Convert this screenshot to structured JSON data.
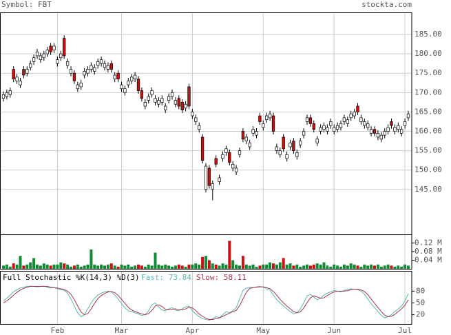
{
  "header": {
    "symbol": "Symbol: FBT",
    "site": "stockta.com"
  },
  "chart_data": [
    {
      "type": "candlestick",
      "up_color": "#ffffff",
      "down_color": "#cc1111",
      "edge_color": "#000000",
      "grid": true,
      "ylim": [
        133.4,
        190.7
      ],
      "yticks": [
        {
          "value": 145,
          "label": "145.00"
        },
        {
          "value": 150,
          "label": "150.00"
        },
        {
          "value": 155,
          "label": "155.00"
        },
        {
          "value": 160,
          "label": "160.00"
        },
        {
          "value": 165,
          "label": "165.00"
        },
        {
          "value": 170,
          "label": "170.00"
        },
        {
          "value": 175,
          "label": "175.00"
        },
        {
          "value": 180,
          "label": "180.00"
        },
        {
          "value": 185,
          "label": "185.00"
        }
      ],
      "categories": [
        null,
        null,
        null,
        null,
        null,
        null,
        null,
        null,
        null,
        null,
        null,
        null,
        null,
        null,
        null,
        null,
        "Feb",
        null,
        null,
        null,
        null,
        null,
        null,
        null,
        null,
        null,
        null,
        null,
        null,
        null,
        null,
        null,
        null,
        null,
        null,
        "Mar",
        null,
        null,
        null,
        null,
        null,
        null,
        null,
        null,
        null,
        null,
        null,
        null,
        null,
        null,
        null,
        null,
        null,
        null,
        null,
        null,
        "Apr",
        null,
        null,
        null,
        null,
        null,
        null,
        null,
        null,
        null,
        null,
        null,
        null,
        null,
        null,
        null,
        null,
        null,
        null,
        null,
        null,
        "May",
        null,
        null,
        null,
        null,
        null,
        null,
        null,
        null,
        null,
        null,
        null,
        null,
        null,
        null,
        null,
        null,
        null,
        null,
        null,
        null,
        "Jun",
        null,
        null,
        null,
        null,
        null,
        null,
        null,
        null,
        null,
        null,
        null,
        null,
        null,
        null,
        null,
        null,
        null,
        null,
        null,
        null,
        "Jul",
        null
      ],
      "open": [
        168.5,
        169,
        169.5,
        176,
        173,
        172,
        176,
        175,
        176.5,
        178,
        179.5,
        178.5,
        179,
        180,
        182,
        181,
        177.5,
        179,
        184,
        177,
        175,
        175,
        171,
        171.5,
        174.5,
        175,
        176,
        175.5,
        177,
        177.5,
        176.5,
        176,
        177.5,
        173.5,
        175,
        171,
        170,
        172,
        173,
        173.5,
        173.5,
        170.5,
        166.5,
        168,
        169.5,
        167.5,
        167,
        167.5,
        165.5,
        168,
        169,
        167,
        168.5,
        167.5,
        166,
        171.5,
        164,
        162.5,
        160.5,
        158.5,
        145,
        150.5,
        145,
        153,
        147,
        153,
        154.5,
        154.5,
        150.5,
        149.5,
        154,
        160,
        157.5,
        156,
        159.5,
        159,
        164,
        161,
        163,
        163.5,
        164,
        155,
        154,
        158.5,
        153,
        156,
        157.5,
        153.5,
        156.5,
        159,
        162.5,
        163.5,
        162,
        157,
        160,
        160.5,
        160,
        161.5,
        160,
        160.5,
        161,
        162.5,
        162,
        163.5,
        164,
        166.5,
        162.5,
        161.5,
        161,
        159.5,
        160.5,
        158.5,
        158,
        159,
        160,
        162.5,
        160,
        160.5,
        159.5,
        161.5,
        163.5
      ],
      "high": [
        170.3,
        170.8,
        171.3,
        176.8,
        174.8,
        173.8,
        176.8,
        176.8,
        178.3,
        179.8,
        181.3,
        180.3,
        180.8,
        181.8,
        182.8,
        182.8,
        179.3,
        180.8,
        184.8,
        178.8,
        176.8,
        175.8,
        172.8,
        173.3,
        176.3,
        176.8,
        177.8,
        177.3,
        178.8,
        179.3,
        178.3,
        177.8,
        178.3,
        175.3,
        175.8,
        172.8,
        171.8,
        173.8,
        174.8,
        175.3,
        174.3,
        171.3,
        168.3,
        169.8,
        171.3,
        169.3,
        168.8,
        169.3,
        167.3,
        169.8,
        170.8,
        168.8,
        169.3,
        168.3,
        167.8,
        172.3,
        165.8,
        164.3,
        162.3,
        159.3,
        151.8,
        151.3,
        147.3,
        153.8,
        148.8,
        154.8,
        156.3,
        155.3,
        152.3,
        151.3,
        155.8,
        160.8,
        159.3,
        157.8,
        161.3,
        160.8,
        164.8,
        162.8,
        164.8,
        165.3,
        164.8,
        156.8,
        155.8,
        159.3,
        154.8,
        157.8,
        158.3,
        155.3,
        158.3,
        160.8,
        164.3,
        164.3,
        162.8,
        158.8,
        161.8,
        162.3,
        161.8,
        163.3,
        161.8,
        162.3,
        162.8,
        164.3,
        163.8,
        165.3,
        165.8,
        167.3,
        164.3,
        163.3,
        162.8,
        161.3,
        161.3,
        160.3,
        159.8,
        160.8,
        161.8,
        163.3,
        161.8,
        162.3,
        161.3,
        163.3,
        165.3
      ],
      "low": [
        167.7,
        168.2,
        168.7,
        172.7,
        172.2,
        171.2,
        173.7,
        174.2,
        175.7,
        177.2,
        178.7,
        177.7,
        178.2,
        179.2,
        179.7,
        180.2,
        176.7,
        178.2,
        178.7,
        176.2,
        174.2,
        172.2,
        170.2,
        170.7,
        173.7,
        174.2,
        175.2,
        174.7,
        176.2,
        176.7,
        175.7,
        175.2,
        175.2,
        172.7,
        172.7,
        170.2,
        169.2,
        171.2,
        172.2,
        172.7,
        169.7,
        167.7,
        165.7,
        167.2,
        168.7,
        166.7,
        166.2,
        166.7,
        164.7,
        167.2,
        168.2,
        166.2,
        165.7,
        164.7,
        165.2,
        165.7,
        163.2,
        161.7,
        159.7,
        151.7,
        144.2,
        145.2,
        142.2,
        150.7,
        146.2,
        152.2,
        153.7,
        151.2,
        149.7,
        148.7,
        153.2,
        157.2,
        156.7,
        155.2,
        158.7,
        158.2,
        161.7,
        160.2,
        162.2,
        162.7,
        159.2,
        154.2,
        153.2,
        154.7,
        152.2,
        155.2,
        154.2,
        152.7,
        155.7,
        158.2,
        161.7,
        161.2,
        159.7,
        156.2,
        159.2,
        159.7,
        159.2,
        160.7,
        159.2,
        159.7,
        160.2,
        161.7,
        161.2,
        162.7,
        163.2,
        164.2,
        161.7,
        160.7,
        160.2,
        158.7,
        158.7,
        157.7,
        157.2,
        158.2,
        159.2,
        160.7,
        159.2,
        159.7,
        158.7,
        160.7,
        162.7
      ],
      "close": [
        169.5,
        170,
        170.5,
        173.5,
        174,
        173,
        174.5,
        176,
        177.5,
        179,
        180.5,
        179.5,
        180,
        181,
        180.5,
        182,
        178.5,
        180,
        179.5,
        178,
        176,
        173,
        172,
        172.5,
        175.5,
        176,
        177,
        176.5,
        178,
        178.5,
        177.5,
        177,
        176,
        174.5,
        173.5,
        172,
        171,
        173,
        174,
        174.5,
        170.5,
        168.5,
        167.5,
        169,
        170.5,
        168.5,
        168,
        168.5,
        166.5,
        169,
        170,
        168,
        166.5,
        165.5,
        167,
        166.5,
        165,
        163.5,
        161.5,
        152.5,
        151,
        146,
        146.5,
        151.5,
        148,
        154,
        155.5,
        152,
        151.5,
        150.5,
        155,
        158,
        158.5,
        157,
        160.5,
        160,
        162.5,
        162,
        164,
        164.5,
        160,
        156,
        155,
        155.5,
        154,
        157,
        155,
        154.5,
        157.5,
        160,
        163.5,
        162,
        160.5,
        158,
        161,
        161.5,
        161,
        162.5,
        161,
        161.5,
        162,
        163.5,
        163,
        164.5,
        165,
        165,
        163.5,
        162.5,
        162,
        160.5,
        159.5,
        159.5,
        159,
        160,
        161,
        161.5,
        161,
        161.5,
        160.5,
        162.5,
        164.5
      ]
    },
    {
      "type": "bar",
      "up_color": "#138a36",
      "down_color": "#cc1111",
      "ylim": [
        0,
        0.16
      ],
      "yticks": [
        {
          "value": 0.04,
          "label": "0.04 M"
        },
        {
          "value": 0.08,
          "label": "0.08 M"
        },
        {
          "value": 0.12,
          "label": "0.12 M"
        }
      ],
      "values": [
        0.015,
        0.02,
        0.01,
        0.025,
        0.02,
        0.06,
        0.015,
        0.02,
        0.03,
        0.05,
        0.02,
        0.015,
        0.025,
        0.02,
        0.015,
        0.02,
        0.02,
        0.03,
        0.025,
        0.02,
        0.01,
        0.015,
        0.02,
        0.01,
        0.015,
        0.02,
        0.09,
        0.02,
        0.015,
        0.02,
        0.015,
        0.02,
        0.025,
        0.015,
        0.01,
        0.02,
        0.015,
        0.02,
        0.01,
        0.015,
        0.02,
        0.015,
        0.01,
        0.02,
        0.015,
        0.075,
        0.02,
        0.015,
        0.02,
        0.015,
        0.01,
        0.015,
        0.02,
        0.015,
        0.01,
        0.02,
        0.02,
        0.025,
        0.02,
        0.055,
        0.06,
        0.04,
        0.025,
        0.02,
        0.015,
        0.025,
        0.02,
        0.13,
        0.04,
        0.02,
        0.015,
        0.06,
        0.02,
        0.015,
        0.02,
        0.01,
        0.015,
        0.02,
        0.02,
        0.03,
        0.025,
        0.02,
        0.03,
        0.05,
        0.02,
        0.025,
        0.015,
        0.02,
        0.01,
        0.015,
        0.02,
        0.015,
        0.02,
        0.025,
        0.02,
        0.03,
        0.015,
        0.01,
        0.02,
        0.015,
        0.01,
        0.02,
        0.015,
        0.025,
        0.02,
        0.015,
        0.01,
        0.02,
        0.015,
        0.02,
        0.015,
        0.02,
        0.01,
        0.015,
        0.02,
        0.015,
        0.01,
        0.015,
        0.01,
        0.02,
        0.015
      ]
    },
    {
      "type": "line",
      "title": "Full Stochastic %K(14,3) %D(3)",
      "ylim": [
        -3.5,
        131.5
      ],
      "yticks": [
        20,
        50,
        80
      ],
      "series": [
        {
          "name": "Fast: 73.84",
          "color": "#5ab5b5",
          "values": [
            55,
            62,
            70,
            78,
            84,
            88,
            90,
            92,
            93,
            92,
            91,
            92,
            93,
            90,
            88,
            89,
            86,
            84,
            82,
            75,
            60,
            42,
            25,
            15,
            20,
            35,
            50,
            62,
            70,
            75,
            78,
            80,
            78,
            70,
            60,
            48,
            38,
            30,
            28,
            25,
            22,
            18,
            20,
            30,
            45,
            50,
            40,
            32,
            30,
            35,
            38,
            32,
            30,
            35,
            40,
            42,
            30,
            22,
            15,
            10,
            8,
            6,
            10,
            15,
            12,
            20,
            28,
            25,
            30,
            38,
            60,
            82,
            88,
            90,
            89,
            91,
            92,
            90,
            86,
            82,
            70,
            58,
            50,
            42,
            35,
            28,
            22,
            25,
            35,
            50,
            68,
            72,
            65,
            58,
            62,
            70,
            75,
            78,
            82,
            80,
            78,
            82,
            84,
            86,
            85,
            84,
            80,
            72,
            60,
            48,
            38,
            28,
            18,
            12,
            15,
            20,
            28,
            35,
            42,
            55,
            73.84
          ]
        },
        {
          "name": "Slow: 58.11",
          "color": "#a8324a",
          "values": [
            50,
            55,
            62,
            70,
            77,
            83,
            87,
            90,
            92,
            92,
            92,
            92,
            92,
            92,
            90,
            89,
            88,
            86,
            84,
            80,
            72,
            59,
            42,
            27,
            20,
            23,
            35,
            49,
            61,
            69,
            74,
            78,
            79,
            76,
            69,
            59,
            49,
            39,
            32,
            28,
            25,
            22,
            20,
            23,
            31,
            42,
            45,
            41,
            34,
            32,
            34,
            35,
            33,
            32,
            35,
            39,
            37,
            31,
            22,
            16,
            11,
            8,
            8,
            10,
            12,
            16,
            20,
            24,
            28,
            31,
            43,
            60,
            77,
            87,
            89,
            90,
            91,
            91,
            89,
            86,
            79,
            70,
            59,
            50,
            42,
            35,
            28,
            25,
            27,
            37,
            51,
            63,
            68,
            65,
            62,
            63,
            69,
            74,
            78,
            80,
            80,
            80,
            81,
            84,
            85,
            85,
            83,
            79,
            71,
            60,
            49,
            38,
            28,
            19,
            15,
            16,
            21,
            28,
            35,
            44,
            58.11
          ]
        }
      ]
    }
  ]
}
